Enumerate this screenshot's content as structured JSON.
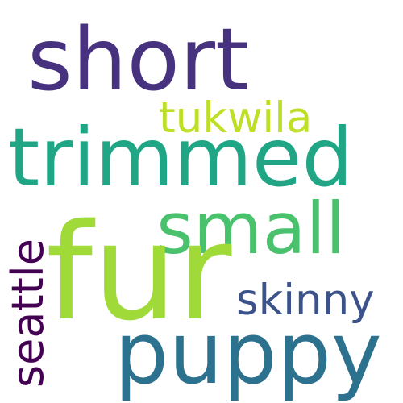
{
  "words": [
    {
      "id": "fur",
      "text": "fur",
      "color": "#a0da39",
      "orientation": "horizontal"
    },
    {
      "id": "short",
      "text": "short",
      "color": "#46327e",
      "orientation": "horizontal"
    },
    {
      "id": "trimmed",
      "text": "trimmed",
      "color": "#21a685",
      "orientation": "horizontal"
    },
    {
      "id": "puppy",
      "text": "puppy",
      "color": "#2c728e",
      "orientation": "horizontal"
    },
    {
      "id": "small",
      "text": "small",
      "color": "#4ac16d",
      "orientation": "horizontal"
    },
    {
      "id": "seattle",
      "text": "seattle",
      "color": "#440154",
      "orientation": "vertical"
    },
    {
      "id": "skinny",
      "text": "skinny",
      "color": "#3b528b",
      "orientation": "horizontal"
    },
    {
      "id": "tukwila",
      "text": "tukwila",
      "color": "#bddf26",
      "orientation": "horizontal"
    }
  ]
}
